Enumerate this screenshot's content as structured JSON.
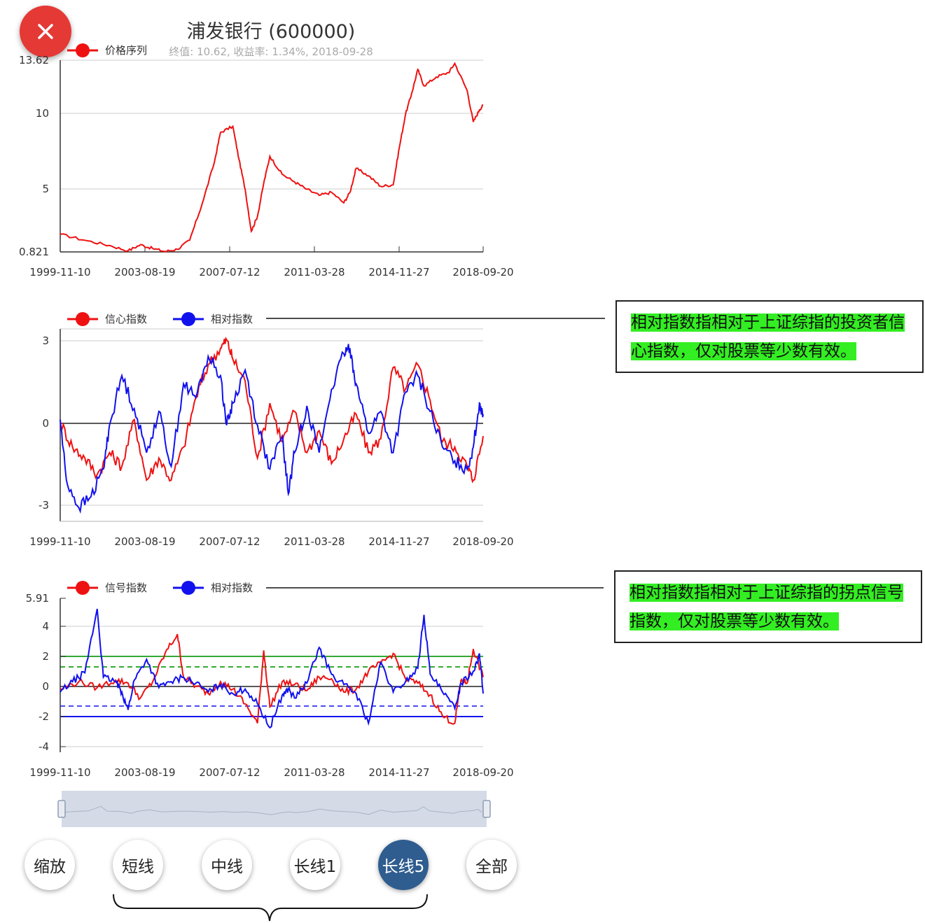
{
  "title": "浦发银行 (600000)",
  "subtitle": "终值: 10.62, 收益率: 1.34%, 2018-09-28",
  "colors": {
    "red": "#ee1111",
    "blue": "#1111ee",
    "green": "#33aa33",
    "accent": "#2f5d8f",
    "close": "#e53935"
  },
  "close_icon": "close-icon",
  "notes": [
    {
      "text": "相对指数指相对于上证综指的投资者信心指数，仅对股票等少数有效。"
    },
    {
      "text": "相对指数指相对于上证综指的拐点信号指数，仅对股票等少数有效。"
    }
  ],
  "buttons": [
    {
      "label": "缩放",
      "active": false
    },
    {
      "label": "短线",
      "active": false
    },
    {
      "label": "中线",
      "active": false
    },
    {
      "label": "长线1",
      "active": false
    },
    {
      "label": "长线5",
      "active": true
    },
    {
      "label": "全部",
      "active": false
    }
  ],
  "chart_data": [
    {
      "type": "line",
      "x_tick_labels": [
        "1999-11-10",
        "2003-08-19",
        "2007-07-12",
        "2011-03-28",
        "2014-11-27",
        "2018-09-20"
      ],
      "y_tick_labels": [
        "13.62",
        "10",
        "5",
        "0.821"
      ],
      "ylim": [
        0.821,
        13.62
      ],
      "series": [
        {
          "name": "价格序列",
          "color": "#ee1111",
          "points": [
            [
              0,
              2.0
            ],
            [
              4,
              1.6
            ],
            [
              8,
              1.25
            ],
            [
              11,
              0.9
            ],
            [
              13,
              1.3
            ],
            [
              15,
              1.05
            ],
            [
              17,
              0.85
            ],
            [
              19,
              1.0
            ],
            [
              21,
              1.6
            ],
            [
              23,
              4.0
            ],
            [
              25,
              6.8
            ],
            [
              26,
              8.8
            ],
            [
              28,
              9.2
            ],
            [
              29,
              7.0
            ],
            [
              30,
              5.0
            ],
            [
              31,
              2.2
            ],
            [
              32,
              3.2
            ],
            [
              33,
              5.4
            ],
            [
              34,
              7.2
            ],
            [
              36,
              6.0
            ],
            [
              38,
              5.5
            ],
            [
              40,
              5.0
            ],
            [
              42,
              4.6
            ],
            [
              44,
              4.8
            ],
            [
              46,
              4.1
            ],
            [
              47,
              4.8
            ],
            [
              48,
              6.4
            ],
            [
              50,
              5.9
            ],
            [
              52,
              5.2
            ],
            [
              54,
              5.3
            ],
            [
              55,
              7.8
            ],
            [
              56,
              10.0
            ],
            [
              57,
              11.4
            ],
            [
              58,
              13.0
            ],
            [
              59,
              11.9
            ],
            [
              61,
              12.5
            ],
            [
              63,
              12.8
            ],
            [
              64,
              13.4
            ],
            [
              66,
              11.6
            ],
            [
              67,
              9.5
            ],
            [
              68,
              10.3
            ],
            [
              68.6,
              10.62
            ]
          ]
        }
      ]
    },
    {
      "type": "line",
      "x_tick_labels": [
        "1999-11-10",
        "2003-08-19",
        "2007-07-12",
        "2011-03-28",
        "2014-11-27",
        "2018-09-20"
      ],
      "y_tick_labels": [
        "3",
        "0",
        "-3"
      ],
      "ylim": [
        -3.5,
        3.5
      ],
      "series": [
        {
          "name": "信心指数",
          "color": "#ee1111",
          "points": [
            [
              0,
              0.1
            ],
            [
              2,
              -0.8
            ],
            [
              4,
              -1.2
            ],
            [
              6,
              -1.8
            ],
            [
              8,
              -1.0
            ],
            [
              10,
              -1.5
            ],
            [
              12,
              0.2
            ],
            [
              14,
              -2.0
            ],
            [
              16,
              -1.2
            ],
            [
              18,
              -2.0
            ],
            [
              20,
              -0.8
            ],
            [
              22,
              1.0
            ],
            [
              24,
              2.2
            ],
            [
              26,
              2.8
            ],
            [
              27,
              3.1
            ],
            [
              28,
              2.4
            ],
            [
              30,
              1.6
            ],
            [
              32,
              -1.2
            ],
            [
              34,
              0.8
            ],
            [
              36,
              -0.6
            ],
            [
              38,
              0.5
            ],
            [
              40,
              -1.0
            ],
            [
              42,
              -0.2
            ],
            [
              44,
              -1.4
            ],
            [
              46,
              -0.5
            ],
            [
              48,
              0.4
            ],
            [
              50,
              -1.0
            ],
            [
              52,
              -0.5
            ],
            [
              54,
              2.1
            ],
            [
              56,
              1.3
            ],
            [
              58,
              2.2
            ],
            [
              60,
              0.9
            ],
            [
              62,
              -0.6
            ],
            [
              64,
              -0.8
            ],
            [
              66,
              -1.5
            ],
            [
              67,
              -2.0
            ],
            [
              68.6,
              -0.4
            ]
          ]
        },
        {
          "name": "相对指数",
          "color": "#1111ee",
          "points": [
            [
              0,
              0.2
            ],
            [
              1,
              -2.0
            ],
            [
              3,
              -3.0
            ],
            [
              5,
              -2.6
            ],
            [
              7,
              -1.6
            ],
            [
              8,
              0.0
            ],
            [
              10,
              1.8
            ],
            [
              12,
              0.6
            ],
            [
              14,
              -1.0
            ],
            [
              16,
              0.5
            ],
            [
              18,
              -1.5
            ],
            [
              20,
              1.5
            ],
            [
              22,
              1.0
            ],
            [
              24,
              2.5
            ],
            [
              26,
              1.8
            ],
            [
              27,
              0.0
            ],
            [
              28,
              0.8
            ],
            [
              30,
              2.0
            ],
            [
              32,
              0.0
            ],
            [
              34,
              -1.6
            ],
            [
              36,
              -0.4
            ],
            [
              37,
              -2.5
            ],
            [
              38,
              -1.0
            ],
            [
              40,
              0.7
            ],
            [
              42,
              -1.0
            ],
            [
              44,
              1.3
            ],
            [
              46,
              2.6
            ],
            [
              47,
              2.8
            ],
            [
              48,
              1.5
            ],
            [
              50,
              -0.3
            ],
            [
              52,
              0.5
            ],
            [
              54,
              -1.0
            ],
            [
              56,
              1.2
            ],
            [
              58,
              1.8
            ],
            [
              60,
              0.5
            ],
            [
              62,
              -0.8
            ],
            [
              64,
              -1.3
            ],
            [
              66,
              -1.6
            ],
            [
              67,
              -0.8
            ],
            [
              68,
              0.8
            ],
            [
              68.6,
              0.4
            ]
          ]
        }
      ]
    },
    {
      "type": "line",
      "x_tick_labels": [
        "1999-11-10",
        "2003-08-19",
        "2007-07-12",
        "2011-03-28",
        "2014-11-27",
        "2018-09-20"
      ],
      "y_tick_labels": [
        "5.91",
        "4",
        "2",
        "0",
        "-2",
        "-4"
      ],
      "ylim": [
        -4.5,
        5.91
      ],
      "reference_lines": [
        2,
        1.3,
        0,
        -1.3,
        -2
      ],
      "series": [
        {
          "name": "信号指数",
          "color": "#ee1111",
          "points": [
            [
              0,
              -0.2
            ],
            [
              3,
              0.3
            ],
            [
              6,
              -0.1
            ],
            [
              9,
              0.4
            ],
            [
              11,
              0.2
            ],
            [
              13,
              -0.8
            ],
            [
              15,
              0.3
            ],
            [
              17,
              2.2
            ],
            [
              19,
              3.5
            ],
            [
              20,
              0.6
            ],
            [
              22,
              0.0
            ],
            [
              24,
              -0.5
            ],
            [
              26,
              0.3
            ],
            [
              28,
              -0.2
            ],
            [
              30,
              -1.2
            ],
            [
              32,
              -2.5
            ],
            [
              33,
              2.4
            ],
            [
              34,
              -1.4
            ],
            [
              36,
              0.3
            ],
            [
              38,
              0.1
            ],
            [
              40,
              -0.3
            ],
            [
              42,
              0.6
            ],
            [
              44,
              0.5
            ],
            [
              46,
              -0.4
            ],
            [
              48,
              -0.2
            ],
            [
              50,
              1.0
            ],
            [
              52,
              1.5
            ],
            [
              54,
              2.2
            ],
            [
              56,
              0.5
            ],
            [
              58,
              0.2
            ],
            [
              60,
              -0.6
            ],
            [
              62,
              -2.0
            ],
            [
              64,
              -2.5
            ],
            [
              65,
              0.4
            ],
            [
              66,
              0.2
            ],
            [
              67,
              2.5
            ],
            [
              68.6,
              0.6
            ]
          ]
        },
        {
          "name": "相对指数",
          "color": "#1111ee",
          "points": [
            [
              0,
              -0.4
            ],
            [
              2,
              0.3
            ],
            [
              4,
              0.9
            ],
            [
              6,
              5.2
            ],
            [
              7,
              0.6
            ],
            [
              9,
              0.3
            ],
            [
              10,
              -0.4
            ],
            [
              11,
              -1.6
            ],
            [
              12,
              0.4
            ],
            [
              14,
              1.8
            ],
            [
              16,
              -0.1
            ],
            [
              18,
              0.3
            ],
            [
              20,
              0.6
            ],
            [
              22,
              0.2
            ],
            [
              24,
              -0.4
            ],
            [
              26,
              0.1
            ],
            [
              28,
              -0.5
            ],
            [
              30,
              -0.2
            ],
            [
              32,
              -1.2
            ],
            [
              34,
              -2.8
            ],
            [
              36,
              -0.6
            ],
            [
              37,
              -0.2
            ],
            [
              38,
              -0.8
            ],
            [
              40,
              0.2
            ],
            [
              42,
              2.6
            ],
            [
              44,
              0.8
            ],
            [
              46,
              0.1
            ],
            [
              48,
              -0.5
            ],
            [
              50,
              -2.5
            ],
            [
              52,
              1.6
            ],
            [
              54,
              -0.4
            ],
            [
              56,
              0.3
            ],
            [
              58,
              1.2
            ],
            [
              59,
              4.8
            ],
            [
              60,
              0.8
            ],
            [
              62,
              -0.4
            ],
            [
              64,
              -1.5
            ],
            [
              65,
              0.2
            ],
            [
              67,
              1.0
            ],
            [
              68,
              2.2
            ],
            [
              68.6,
              -0.5
            ]
          ]
        }
      ]
    }
  ]
}
